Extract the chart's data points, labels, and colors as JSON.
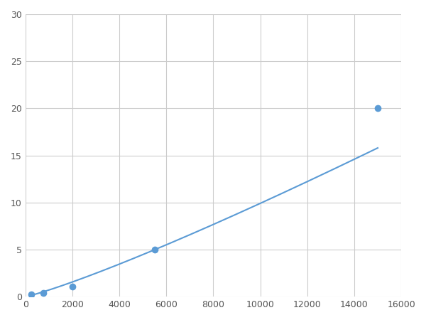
{
  "x": [
    250,
    750,
    2000,
    5500,
    15000
  ],
  "y": [
    0.2,
    0.4,
    1.1,
    5.0,
    20.0
  ],
  "line_color": "#5B9BD5",
  "marker_color": "#5B9BD5",
  "marker_size": 7,
  "line_width": 1.5,
  "xlim": [
    0,
    16000
  ],
  "ylim": [
    0,
    30
  ],
  "xticks": [
    0,
    2000,
    4000,
    6000,
    8000,
    10000,
    12000,
    14000,
    16000
  ],
  "yticks": [
    0,
    5,
    10,
    15,
    20,
    25,
    30
  ],
  "grid_color": "#CCCCCC",
  "background_color": "#FFFFFF",
  "figsize": [
    6.0,
    4.5
  ],
  "dpi": 100
}
